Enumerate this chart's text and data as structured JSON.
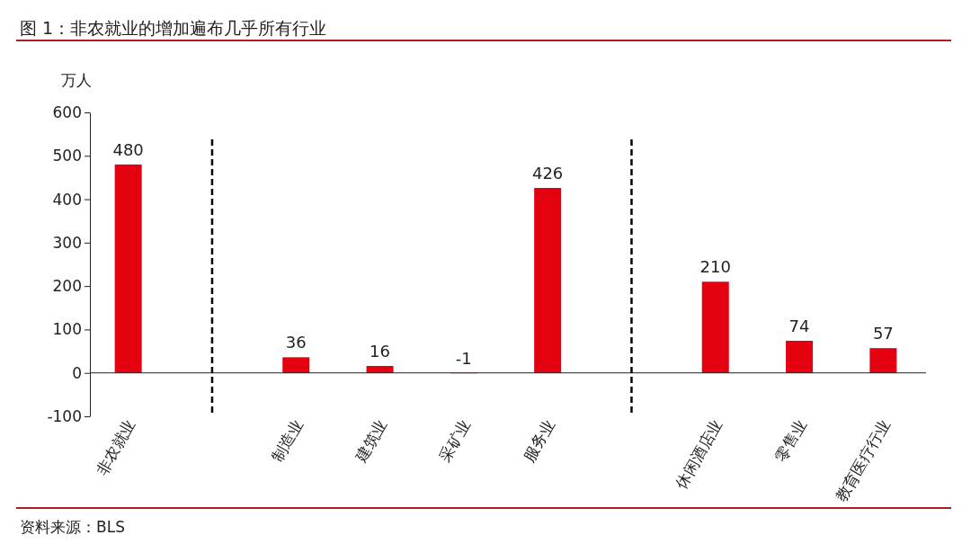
{
  "chart_data": {
    "type": "bar",
    "title": "图 1：非农就业的增加遍布几乎所有行业",
    "ylabel": "万人",
    "categories": [
      "非农就业",
      null,
      "制造业",
      "建筑业",
      "采矿业",
      "服务业",
      null,
      "休闲酒店业",
      "零售业",
      "教育医疗行业"
    ],
    "values": [
      480,
      null,
      36,
      16,
      -1,
      426,
      null,
      210,
      74,
      57
    ],
    "color": "#e3000f",
    "data_labels": true,
    "ylim": [
      -100,
      600
    ],
    "yticks": [
      -100,
      0,
      100,
      200,
      300,
      400,
      500,
      600
    ],
    "ref_lines": [
      {
        "axis": "x",
        "value": null,
        "line_style": "dashed",
        "color": "#000000"
      },
      {
        "axis": "x",
        "value": null,
        "line_style": "dashed",
        "color": "#000000"
      }
    ],
    "annotations": [
      "资料来源：BLS"
    ]
  }
}
